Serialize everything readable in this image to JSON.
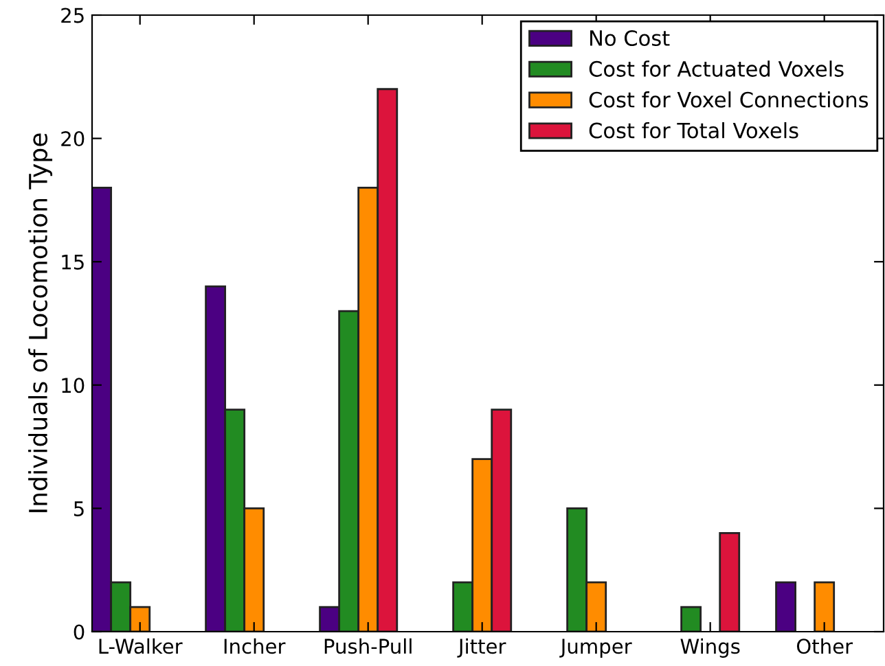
{
  "chart_data": {
    "type": "bar",
    "ylabel": "Individuals of Locomotion Type",
    "categories": [
      "L-Walker",
      "Incher",
      "Push-Pull",
      "Jitter",
      "Jumper",
      "Wings",
      "Other"
    ],
    "series": [
      {
        "name": "No Cost",
        "color": "#4b0082",
        "values": [
          18,
          14,
          1,
          null,
          null,
          null,
          2
        ]
      },
      {
        "name": "Cost for Actuated Voxels",
        "color": "#228b22",
        "values": [
          2,
          9,
          13,
          2,
          5,
          1,
          null
        ]
      },
      {
        "name": "Cost for Voxel Connections",
        "color": "#ff8c00",
        "values": [
          1,
          5,
          18,
          7,
          2,
          null,
          2
        ]
      },
      {
        "name": "Cost for Total Voxels",
        "color": "#dc143c",
        "values": [
          null,
          null,
          22,
          9,
          null,
          4,
          null
        ]
      }
    ],
    "ylim": [
      0,
      25
    ],
    "yticks": [
      0,
      5,
      10,
      15,
      20,
      25
    ],
    "grid": false,
    "legend": "top right"
  }
}
